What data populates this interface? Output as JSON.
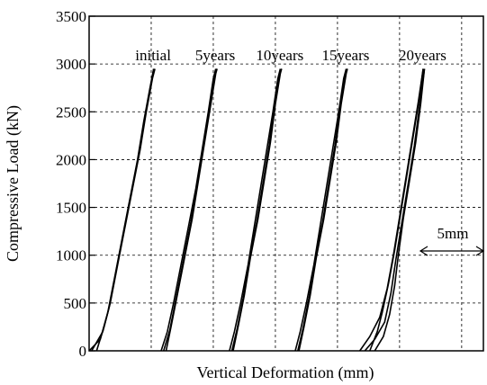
{
  "chart_data": {
    "type": "line",
    "title": "",
    "xlabel": "Vertical Deformation  (mm)",
    "ylabel": "Compressive Load (kN)",
    "ylim": [
      0,
      3500
    ],
    "yticks": [
      0,
      500,
      1000,
      1500,
      2000,
      2500,
      3000,
      3500
    ],
    "xlim": [
      0,
      31.75
    ],
    "grid": true,
    "scale_indicator": {
      "label": "5mm",
      "length_mm": 5
    },
    "curve_labels": [
      "initial",
      "5years",
      "10years",
      "15years",
      "20years"
    ],
    "series": [
      {
        "name": "initial",
        "paths": [
          [
            [
              0,
              0
            ],
            [
              0.9,
              120
            ],
            [
              1.5,
              400
            ],
            [
              2.1,
              800
            ],
            [
              2.7,
              1200
            ],
            [
              3.3,
              1600
            ],
            [
              3.9,
              2000
            ],
            [
              4.4,
              2400
            ],
            [
              4.9,
              2750
            ],
            [
              5.2,
              2950
            ]
          ],
          [
            [
              0.2,
              0
            ],
            [
              1.1,
              200
            ],
            [
              1.6,
              450
            ],
            [
              2.2,
              850
            ],
            [
              2.8,
              1250
            ],
            [
              3.4,
              1650
            ],
            [
              4.0,
              2050
            ],
            [
              4.5,
              2450
            ],
            [
              5.0,
              2800
            ],
            [
              5.2,
              2950
            ]
          ],
          [
            [
              0.6,
              0
            ],
            [
              1.2,
              250
            ],
            [
              1.7,
              500
            ],
            [
              2.3,
              900
            ],
            [
              2.9,
              1300
            ],
            [
              3.5,
              1700
            ],
            [
              4.1,
              2100
            ],
            [
              4.6,
              2500
            ],
            [
              5.1,
              2850
            ],
            [
              5.3,
              2950
            ]
          ]
        ]
      },
      {
        "name": "5years",
        "paths": [
          [
            [
              5.8,
              0
            ],
            [
              6.3,
              200
            ],
            [
              6.8,
              500
            ],
            [
              7.4,
              900
            ],
            [
              8.0,
              1300
            ],
            [
              8.6,
              1700
            ],
            [
              9.1,
              2100
            ],
            [
              9.6,
              2500
            ],
            [
              10.0,
              2850
            ],
            [
              10.2,
              2950
            ]
          ],
          [
            [
              6.0,
              0
            ],
            [
              6.5,
              220
            ],
            [
              7.0,
              550
            ],
            [
              7.6,
              950
            ],
            [
              8.2,
              1350
            ],
            [
              8.7,
              1750
            ],
            [
              9.2,
              2150
            ],
            [
              9.7,
              2550
            ],
            [
              10.1,
              2880
            ],
            [
              10.3,
              2950
            ]
          ],
          [
            [
              6.2,
              0
            ],
            [
              6.6,
              250
            ],
            [
              7.1,
              580
            ],
            [
              7.7,
              980
            ],
            [
              8.3,
              1380
            ],
            [
              8.8,
              1780
            ],
            [
              9.3,
              2180
            ],
            [
              9.8,
              2580
            ],
            [
              10.2,
              2900
            ],
            [
              10.3,
              2950
            ]
          ]
        ]
      },
      {
        "name": "10years",
        "paths": [
          [
            [
              11.3,
              0
            ],
            [
              11.7,
              200
            ],
            [
              12.2,
              500
            ],
            [
              12.8,
              900
            ],
            [
              13.3,
              1300
            ],
            [
              13.8,
              1700
            ],
            [
              14.3,
              2100
            ],
            [
              14.8,
              2500
            ],
            [
              15.2,
              2850
            ],
            [
              15.4,
              2950
            ]
          ],
          [
            [
              11.5,
              0
            ],
            [
              11.9,
              220
            ],
            [
              12.4,
              550
            ],
            [
              12.9,
              950
            ],
            [
              13.5,
              1350
            ],
            [
              14.0,
              1750
            ],
            [
              14.5,
              2150
            ],
            [
              14.9,
              2550
            ],
            [
              15.3,
              2880
            ],
            [
              15.5,
              2950
            ]
          ],
          [
            [
              11.6,
              0
            ],
            [
              12.0,
              250
            ],
            [
              12.5,
              580
            ],
            [
              13.0,
              980
            ],
            [
              13.6,
              1380
            ],
            [
              14.1,
              1780
            ],
            [
              14.6,
              2180
            ],
            [
              15.0,
              2580
            ],
            [
              15.4,
              2900
            ],
            [
              15.5,
              2950
            ]
          ]
        ]
      },
      {
        "name": "15years",
        "paths": [
          [
            [
              16.6,
              0
            ],
            [
              17.0,
              200
            ],
            [
              17.5,
              500
            ],
            [
              18.1,
              900
            ],
            [
              18.6,
              1300
            ],
            [
              19.1,
              1700
            ],
            [
              19.6,
              2100
            ],
            [
              20.1,
              2500
            ],
            [
              20.5,
              2850
            ],
            [
              20.7,
              2950
            ]
          ],
          [
            [
              16.8,
              0
            ],
            [
              17.2,
              220
            ],
            [
              17.7,
              550
            ],
            [
              18.2,
              950
            ],
            [
              18.8,
              1350
            ],
            [
              19.3,
              1750
            ],
            [
              19.8,
              2150
            ],
            [
              20.2,
              2550
            ],
            [
              20.6,
              2880
            ],
            [
              20.8,
              2950
            ]
          ],
          [
            [
              16.9,
              0
            ],
            [
              17.3,
              250
            ],
            [
              17.8,
              580
            ],
            [
              18.3,
              980
            ],
            [
              18.9,
              1380
            ],
            [
              19.4,
              1780
            ],
            [
              19.9,
              2180
            ],
            [
              20.3,
              2580
            ],
            [
              20.7,
              2900
            ],
            [
              20.8,
              2950
            ]
          ]
        ]
      },
      {
        "name": "20years",
        "paths": [
          [
            [
              21.8,
              0
            ],
            [
              22.6,
              150
            ],
            [
              23.4,
              350
            ],
            [
              24.0,
              650
            ],
            [
              24.5,
              1000
            ],
            [
              25.0,
              1400
            ],
            [
              25.5,
              1800
            ],
            [
              26.0,
              2200
            ],
            [
              26.5,
              2600
            ],
            [
              26.9,
              2950
            ]
          ],
          [
            [
              22.2,
              0
            ],
            [
              23.0,
              120
            ],
            [
              23.8,
              300
            ],
            [
              24.3,
              600
            ],
            [
              24.7,
              950
            ],
            [
              25.2,
              1350
            ],
            [
              25.7,
              1750
            ],
            [
              26.2,
              2150
            ],
            [
              26.6,
              2550
            ],
            [
              27.0,
              2950
            ]
          ],
          [
            [
              22.6,
              0
            ],
            [
              23.2,
              200
            ],
            [
              23.6,
              400
            ],
            [
              24.1,
              700
            ],
            [
              24.6,
              1050
            ],
            [
              25.1,
              1450
            ],
            [
              25.6,
              1850
            ],
            [
              26.1,
              2250
            ],
            [
              26.6,
              2650
            ],
            [
              26.9,
              2950
            ]
          ],
          [
            [
              23.0,
              0
            ],
            [
              23.7,
              150
            ],
            [
              24.2,
              380
            ],
            [
              24.6,
              680
            ],
            [
              24.9,
              1000
            ],
            [
              25.3,
              1380
            ],
            [
              25.8,
              1780
            ],
            [
              26.3,
              2180
            ],
            [
              26.7,
              2580
            ],
            [
              27.0,
              2950
            ]
          ]
        ]
      }
    ]
  }
}
